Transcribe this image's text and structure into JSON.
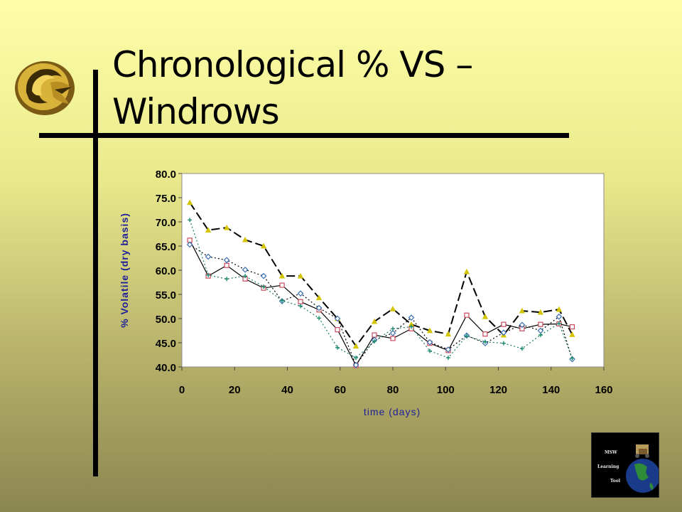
{
  "slide": {
    "title": "Chronological % VS – Windrows"
  },
  "badge": {
    "line1": "MSW",
    "line2": "Learning",
    "line3": "Tool"
  },
  "colors": {
    "logo_gold": "#d9b23a",
    "accent_lines": "#000000",
    "axis_label_color": "#1f1f9a"
  },
  "chart_data": {
    "type": "line",
    "xlabel": "time (days)",
    "ylabel": "% Volatile (dry basis)",
    "xlim": [
      0,
      160
    ],
    "ylim": [
      40,
      80
    ],
    "xticks": [
      "0",
      "20",
      "40",
      "60",
      "80",
      "100",
      "120",
      "140",
      "160"
    ],
    "yticks": [
      "40.0",
      "45.0",
      "50.0",
      "55.0",
      "60.0",
      "65.0",
      "70.0",
      "75.0",
      "80.0"
    ],
    "grid": false,
    "legend": "none",
    "x": [
      3,
      10,
      17,
      24,
      31,
      38,
      45,
      52,
      59,
      66,
      73,
      80,
      87,
      94,
      101,
      108,
      115,
      122,
      129,
      136,
      143,
      148
    ],
    "series": [
      {
        "color": "#000000",
        "marker": "triangle",
        "markerColor": "#d4c400",
        "dash": "12,5",
        "values": [
          74.0,
          68.3,
          68.8,
          66.3,
          65.0,
          58.8,
          58.8,
          54.3,
          50.0,
          44.3,
          49.4,
          52.0,
          48.8,
          47.5,
          46.8,
          59.7,
          50.4,
          46.6,
          51.6,
          51.3,
          51.9,
          46.7
        ]
      },
      {
        "color": "#000000",
        "marker": "square",
        "markerColor": "#c8485a",
        "dash": "",
        "values": [
          66.2,
          58.8,
          61.0,
          58.2,
          56.3,
          56.9,
          53.5,
          51.8,
          47.7,
          40.3,
          46.6,
          45.9,
          47.9,
          44.9,
          43.4,
          50.7,
          46.8,
          48.8,
          47.9,
          48.8,
          48.9,
          48.3
        ]
      },
      {
        "color": "#000000",
        "marker": "diamond",
        "markerColor": "#3a6fb0",
        "dash": "2,3",
        "values": [
          65.3,
          62.8,
          62.1,
          60.1,
          58.8,
          53.6,
          55.2,
          52.2,
          50.0,
          40.4,
          45.6,
          47.0,
          50.2,
          45.1,
          43.6,
          46.5,
          44.9,
          47.1,
          48.7,
          47.5,
          50.4,
          41.6
        ]
      },
      {
        "color": "#1e7a6e",
        "marker": "cross",
        "markerColor": "#1e8a70",
        "dash": "2,3",
        "values": [
          70.4,
          59.0,
          58.2,
          58.8,
          56.6,
          53.7,
          52.6,
          50.1,
          44.0,
          41.9,
          45.3,
          47.9,
          48.3,
          43.3,
          41.9,
          46.4,
          45.2,
          44.9,
          43.8,
          46.6,
          49.0,
          41.8
        ]
      }
    ]
  }
}
